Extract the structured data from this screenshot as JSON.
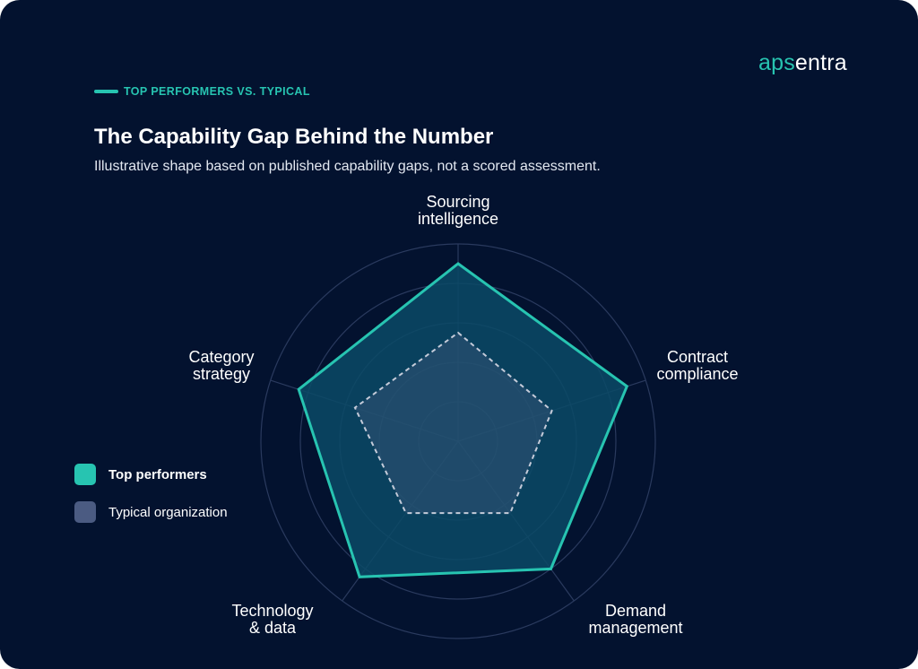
{
  "brand": {
    "prefix": "aps",
    "suffix": "entra"
  },
  "eyebrow": "TOP PERFORMERS VS. TYPICAL",
  "title": "The Capability Gap Behind the Number",
  "subtitle": "Illustrative shape based on published capability gaps, not a scored assessment.",
  "colors": {
    "background": "#03122f",
    "accent": "#27c4b1",
    "top_fill": "#0a4a66",
    "typical_swatch": "#4b5b82",
    "typical_line": "#c4cbd9",
    "grid": "#2a3a5e"
  },
  "legend": [
    {
      "label": "Top performers",
      "key": "top"
    },
    {
      "label": "Typical organization",
      "key": "typical"
    }
  ],
  "chart_data": {
    "type": "radar",
    "axes": [
      [
        "Sourcing",
        "intelligence"
      ],
      [
        "Contract",
        "compliance"
      ],
      [
        "Demand",
        "management"
      ],
      [
        "Technology",
        "& data"
      ],
      [
        "Category",
        "strategy"
      ]
    ],
    "range": [
      0,
      100
    ],
    "rings": 5,
    "grid": true,
    "legend_position": "left",
    "series": [
      {
        "name": "Top performers",
        "values": [
          90,
          90,
          80,
          85,
          85
        ]
      },
      {
        "name": "Typical organization",
        "values": [
          55,
          50,
          45,
          45,
          55
        ]
      }
    ]
  }
}
